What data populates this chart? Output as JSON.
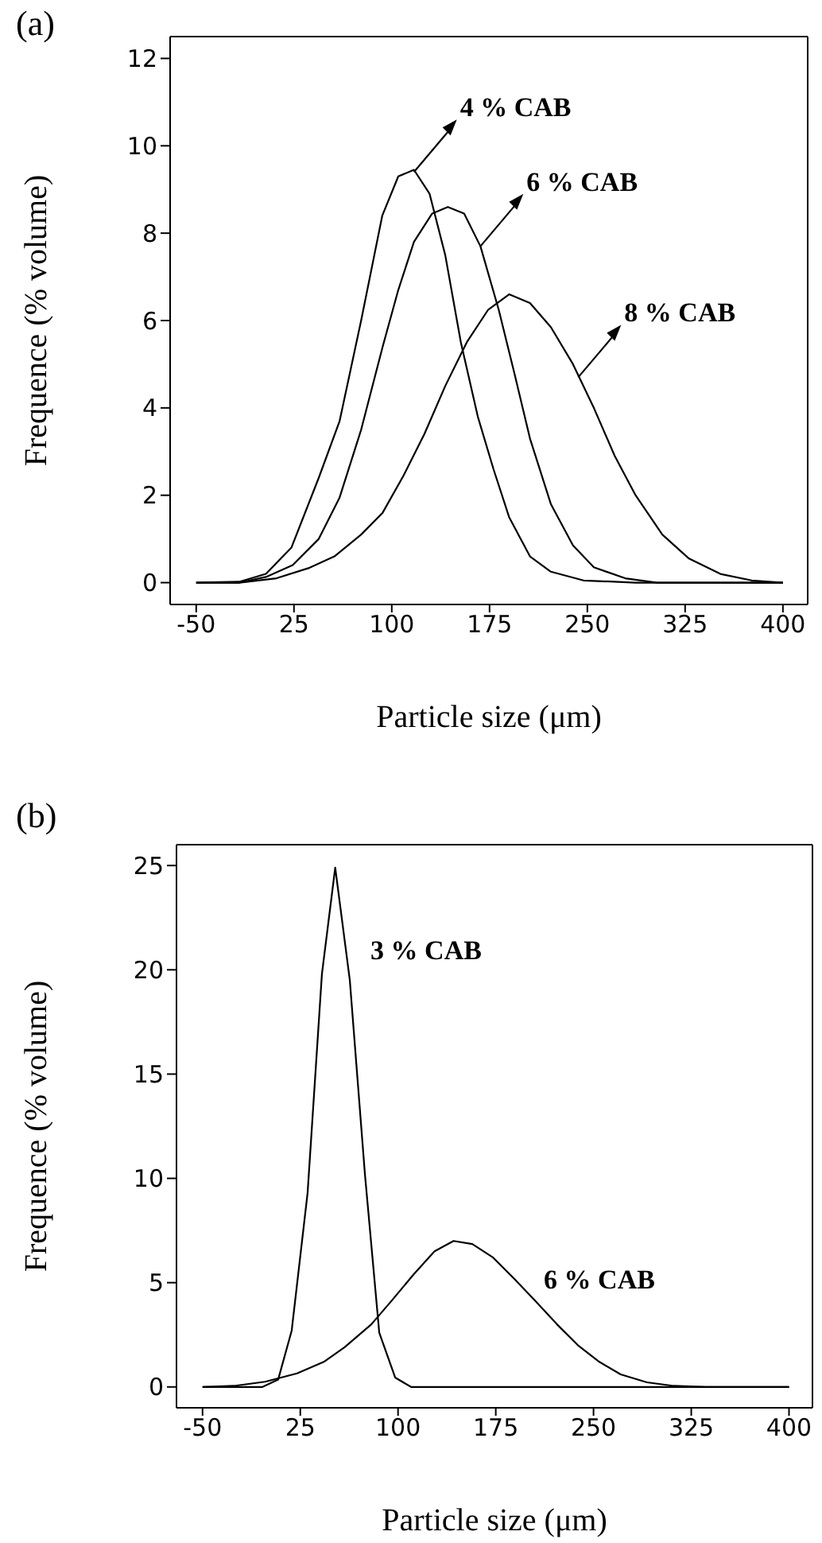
{
  "chart_data": [
    {
      "type": "line",
      "title": "(a)",
      "xlabel": "Particle size (μm)",
      "ylabel": "Frequence (% volume)",
      "xlim": [
        -70,
        419
      ],
      "ylim": [
        -0.5,
        12.5
      ],
      "xticks": [
        -50,
        25,
        100,
        175,
        250,
        325,
        400
      ],
      "yticks": [
        0,
        2,
        4,
        6,
        8,
        10,
        12
      ],
      "marker": "none",
      "line_style": "solid",
      "annotations": [
        {
          "text": "4 % CAB",
          "x": 117,
          "y": 9.4
        },
        {
          "text": "6 % CAB",
          "x": 168,
          "y": 7.7
        },
        {
          "text": "8 % CAB",
          "x": 243,
          "y": 4.7
        }
      ],
      "series": [
        {
          "color": "#000000",
          "x": [
            -50,
            -17,
            3.5,
            23,
            44,
            60,
            76.5,
            92.7,
            105,
            117,
            129,
            141,
            153,
            166,
            178,
            190,
            206,
            222,
            247,
            287,
            400
          ],
          "values": [
            0,
            0.02,
            0.2,
            0.8,
            2.4,
            3.7,
            6.0,
            8.4,
            9.3,
            9.45,
            8.9,
            7.5,
            5.5,
            3.8,
            2.6,
            1.5,
            0.6,
            0.25,
            0.05,
            0,
            0
          ]
        },
        {
          "color": "#000000",
          "x": [
            -50,
            -17,
            3.5,
            24,
            44,
            60,
            76.5,
            93,
            105,
            117,
            131,
            143,
            155.5,
            168,
            182,
            194,
            206,
            222,
            239,
            255,
            279,
            303.5,
            400
          ],
          "values": [
            0,
            0,
            0.13,
            0.4,
            1.0,
            1.95,
            3.5,
            5.4,
            6.7,
            7.8,
            8.45,
            8.6,
            8.45,
            7.7,
            6.25,
            4.8,
            3.3,
            1.8,
            0.85,
            0.35,
            0.1,
            0,
            0
          ]
        },
        {
          "color": "#000000",
          "x": [
            -50,
            -17,
            11.6,
            36,
            56,
            76.5,
            93,
            109,
            125,
            141,
            157.5,
            174,
            190,
            206,
            222,
            239,
            255,
            271,
            287,
            307.5,
            328,
            352,
            376,
            400
          ],
          "values": [
            0,
            0,
            0.1,
            0.33,
            0.6,
            1.1,
            1.6,
            2.45,
            3.4,
            4.5,
            5.5,
            6.25,
            6.6,
            6.4,
            5.85,
            5.0,
            4.0,
            2.9,
            2.0,
            1.1,
            0.55,
            0.2,
            0.05,
            0
          ]
        }
      ]
    },
    {
      "type": "line",
      "title": "(b)",
      "xlabel": "Particle size (μm)",
      "ylabel": "Frequence (% volume)",
      "xlim": [
        -70,
        418
      ],
      "ylim": [
        -1,
        26
      ],
      "xticks": [
        -50,
        25,
        100,
        175,
        250,
        325,
        400
      ],
      "yticks": [
        0,
        5,
        10,
        15,
        20,
        25
      ],
      "marker": "none",
      "line_style": "solid",
      "annotations": [
        "3 % CAB",
        "6 % CAB"
      ],
      "series": [
        {
          "color": "#000000",
          "x": [
            -50,
            -4,
            8,
            18.4,
            30.6,
            41.6,
            51.8,
            63,
            74.6,
            85.6,
            97.8,
            110,
            400
          ],
          "values": [
            0,
            0,
            0.35,
            2.7,
            9.3,
            19.8,
            24.9,
            19.5,
            10.2,
            2.6,
            0.45,
            0,
            0
          ]
        },
        {
          "color": "#000000",
          "x": [
            -50,
            -26,
            -2,
            22.5,
            43,
            59,
            79.5,
            96,
            112,
            128,
            142.6,
            157,
            173,
            189,
            205.7,
            222,
            238,
            254.5,
            270.8,
            291,
            311.6,
            336,
            400
          ],
          "values": [
            0,
            0.05,
            0.25,
            0.65,
            1.2,
            1.9,
            3.0,
            4.2,
            5.4,
            6.5,
            7.0,
            6.85,
            6.2,
            5.2,
            4.1,
            3.0,
            2.0,
            1.2,
            0.6,
            0.22,
            0.05,
            0,
            0
          ]
        }
      ]
    }
  ]
}
